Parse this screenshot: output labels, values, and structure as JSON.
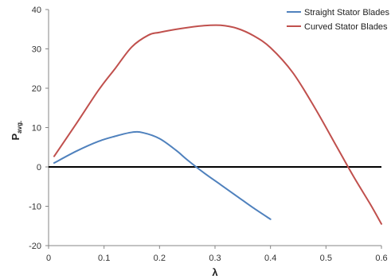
{
  "chart_data": {
    "type": "line",
    "title": "",
    "xlabel": "λ",
    "ylabel": {
      "main": "P",
      "subscript": "avg."
    },
    "xlim": [
      0,
      0.6
    ],
    "ylim": [
      -20,
      40
    ],
    "x_ticks": [
      0,
      0.1,
      0.2,
      0.3,
      0.4,
      0.5,
      0.6
    ],
    "x_tick_labels": [
      "0",
      "0.1",
      "0.2",
      "0.3",
      "0.4",
      "0.5",
      "0.6"
    ],
    "y_ticks": [
      -20,
      -10,
      0,
      10,
      20,
      30,
      40
    ],
    "y_tick_labels": [
      "-20",
      "-10",
      "0",
      "10",
      "20",
      "30",
      "40"
    ],
    "grid": false,
    "zero_line": true,
    "legend_position": "top-right",
    "series": [
      {
        "name": "Straight Stator Blades",
        "color": "#4f81bd",
        "x": [
          0.01,
          0.05,
          0.09,
          0.12,
          0.15,
          0.17,
          0.2,
          0.23,
          0.25,
          0.28,
          0.31,
          0.34,
          0.37,
          0.4
        ],
        "y": [
          1.0,
          4.0,
          6.5,
          7.8,
          8.8,
          8.7,
          7.2,
          4.2,
          1.8,
          -1.5,
          -4.5,
          -7.5,
          -10.5,
          -13.3
        ]
      },
      {
        "name": "Curved Stator Blades",
        "color": "#c0504d",
        "x": [
          0.01,
          0.05,
          0.09,
          0.12,
          0.15,
          0.18,
          0.2,
          0.24,
          0.28,
          0.31,
          0.34,
          0.37,
          0.4,
          0.44,
          0.48,
          0.52,
          0.55,
          0.58,
          0.6
        ],
        "y": [
          2.7,
          11.0,
          19.5,
          25.0,
          30.5,
          33.5,
          34.2,
          35.2,
          35.9,
          36.0,
          35.2,
          33.3,
          30.3,
          24.0,
          15.0,
          5.0,
          -2.5,
          -9.5,
          -14.5
        ]
      }
    ]
  }
}
